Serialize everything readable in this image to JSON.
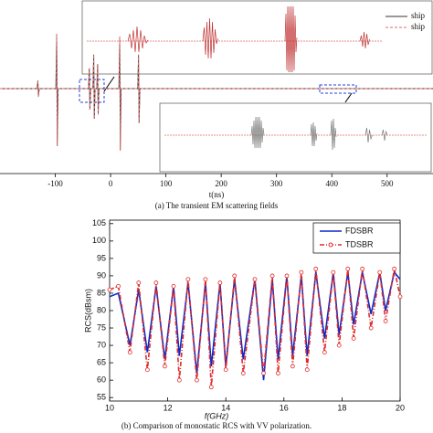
{
  "chart_data": [
    {
      "type": "line",
      "x_label": "t(ns)",
      "caption": "(a) The transient EM scattering fields",
      "x": [
        -200,
        -133,
        -131.5,
        -130.5,
        -129,
        -99,
        -97.5,
        -96.5,
        -95,
        -40,
        -38.5,
        -37.5,
        -36,
        -32,
        -30.5,
        -29.5,
        -28,
        -25,
        -23.5,
        -22.5,
        -21,
        15,
        16.5,
        17.5,
        19,
        49,
        50.5,
        51.5,
        53,
        583
      ],
      "series": [
        {
          "name": "ship",
          "color": "#333333",
          "dash": "none",
          "values": [
            0,
            0,
            0.15,
            -0.15,
            0,
            0,
            1.0,
            -1.05,
            0,
            0,
            0.37,
            -0.38,
            0,
            0,
            0.62,
            -0.55,
            0,
            0,
            0.45,
            -0.47,
            0,
            0,
            0.95,
            -1.13,
            0,
            0,
            0.62,
            -0.63,
            0,
            0
          ]
        },
        {
          "name": "ship",
          "color": "#e06a6a",
          "dash": "3 2",
          "values": [
            0,
            0,
            0.15,
            -0.15,
            0,
            0,
            1.0,
            -1.05,
            0,
            0,
            0.37,
            -0.38,
            0,
            0,
            0.62,
            -0.55,
            0,
            0,
            0.45,
            -0.47,
            0,
            0,
            0.95,
            -1.13,
            0,
            0,
            0.62,
            -0.63,
            0,
            0
          ]
        }
      ],
      "xlim": [
        -200,
        583
      ],
      "ylim": [
        -1.55,
        1.6
      ],
      "xticks": [
        -100,
        0,
        100,
        200,
        300,
        400,
        500
      ],
      "legend": "upper right"
    },
    {
      "type": "line",
      "x_label": "f(GHz)",
      "y_label": "RCS(dBsm)",
      "caption": "(b) Comparison of monostatic RCS with VV polarization.",
      "x": [
        10.0,
        10.3,
        10.7,
        11.0,
        11.3,
        11.6,
        11.9,
        12.2,
        12.4,
        12.7,
        13.0,
        13.3,
        13.5,
        13.8,
        14.0,
        14.3,
        14.6,
        15.0,
        15.3,
        15.6,
        15.8,
        16.1,
        16.3,
        16.6,
        16.8,
        17.1,
        17.4,
        17.7,
        17.9,
        18.2,
        18.4,
        18.7,
        19.0,
        19.3,
        19.5,
        19.8,
        20.0
      ],
      "series": [
        {
          "name": "FDSBR",
          "color": "#0a2ac8",
          "dash": "none",
          "values": [
            84,
            85,
            70,
            86,
            68,
            87,
            66,
            87,
            67,
            88,
            62,
            88,
            64,
            88,
            64,
            89,
            66,
            89,
            60,
            89,
            66,
            90,
            67,
            90,
            67,
            91,
            72,
            91,
            73,
            91,
            76,
            91,
            79,
            91,
            80,
            91,
            89
          ]
        },
        {
          "name": "TDSBR",
          "color": "#e02a2a",
          "dash": "5 2 1 2",
          "marker": "circle",
          "values": [
            86,
            87,
            68,
            88,
            63,
            88,
            64,
            87,
            60,
            89,
            60,
            89,
            58,
            88,
            63,
            90,
            62,
            89,
            62,
            90,
            62,
            90,
            64,
            91,
            63,
            92,
            68,
            91,
            70,
            92,
            72,
            92,
            75,
            91,
            77,
            92,
            84
          ]
        }
      ],
      "xlim": [
        10,
        20
      ],
      "ylim": [
        54,
        106
      ],
      "xticks": [
        10,
        12,
        14,
        16,
        18,
        20
      ],
      "yticks": [
        55,
        60,
        65,
        70,
        75,
        80,
        85,
        90,
        95,
        100,
        105
      ],
      "legend": "upper right"
    }
  ]
}
